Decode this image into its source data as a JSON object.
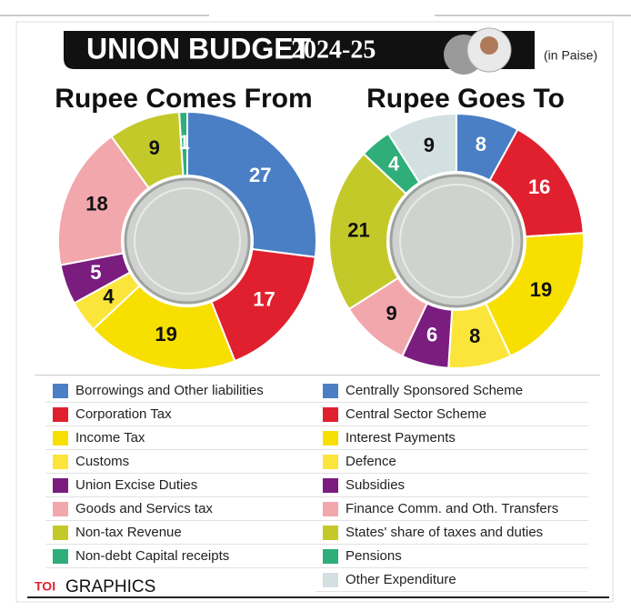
{
  "header": {
    "title": "UNION BUDGET",
    "year": "2024-25",
    "unit": "(in Paise)"
  },
  "footer": {
    "brand": "TOI",
    "label": "GRAPHICS"
  },
  "chart_data": [
    {
      "type": "pie",
      "title": "Rupee Comes From",
      "categories": [
        "Borrowings and Other liabilities",
        "Corporation Tax",
        "Income Tax",
        "Customs",
        "Union Excise Duties",
        "Goods and Servics tax",
        "Non-tax Revenue",
        "Non-debt Capital receipts"
      ],
      "values": [
        27,
        17,
        19,
        4,
        5,
        18,
        9,
        1
      ],
      "colors": [
        "#4a7fc6",
        "#e0202e",
        "#f7df00",
        "#fbe53a",
        "#7a1d7f",
        "#f2a7ad",
        "#c4c92a",
        "#2fae7a"
      ]
    },
    {
      "type": "pie",
      "title": "Rupee Goes To",
      "categories": [
        "Centrally Sponsored Scheme",
        "Central Sector Scheme",
        "Interest Payments",
        "Defence",
        "Subsidies",
        "Finance Comm. and Oth. Transfers",
        "States' share of taxes and duties",
        "Pensions",
        "Other Expenditure"
      ],
      "values": [
        8,
        16,
        19,
        8,
        6,
        9,
        21,
        4,
        9
      ],
      "colors": [
        "#4a7fc6",
        "#e0202e",
        "#f7df00",
        "#fbe53a",
        "#7a1d7f",
        "#f2a7ad",
        "#c4c92a",
        "#2fae7a",
        "#d3e0e2"
      ]
    }
  ]
}
